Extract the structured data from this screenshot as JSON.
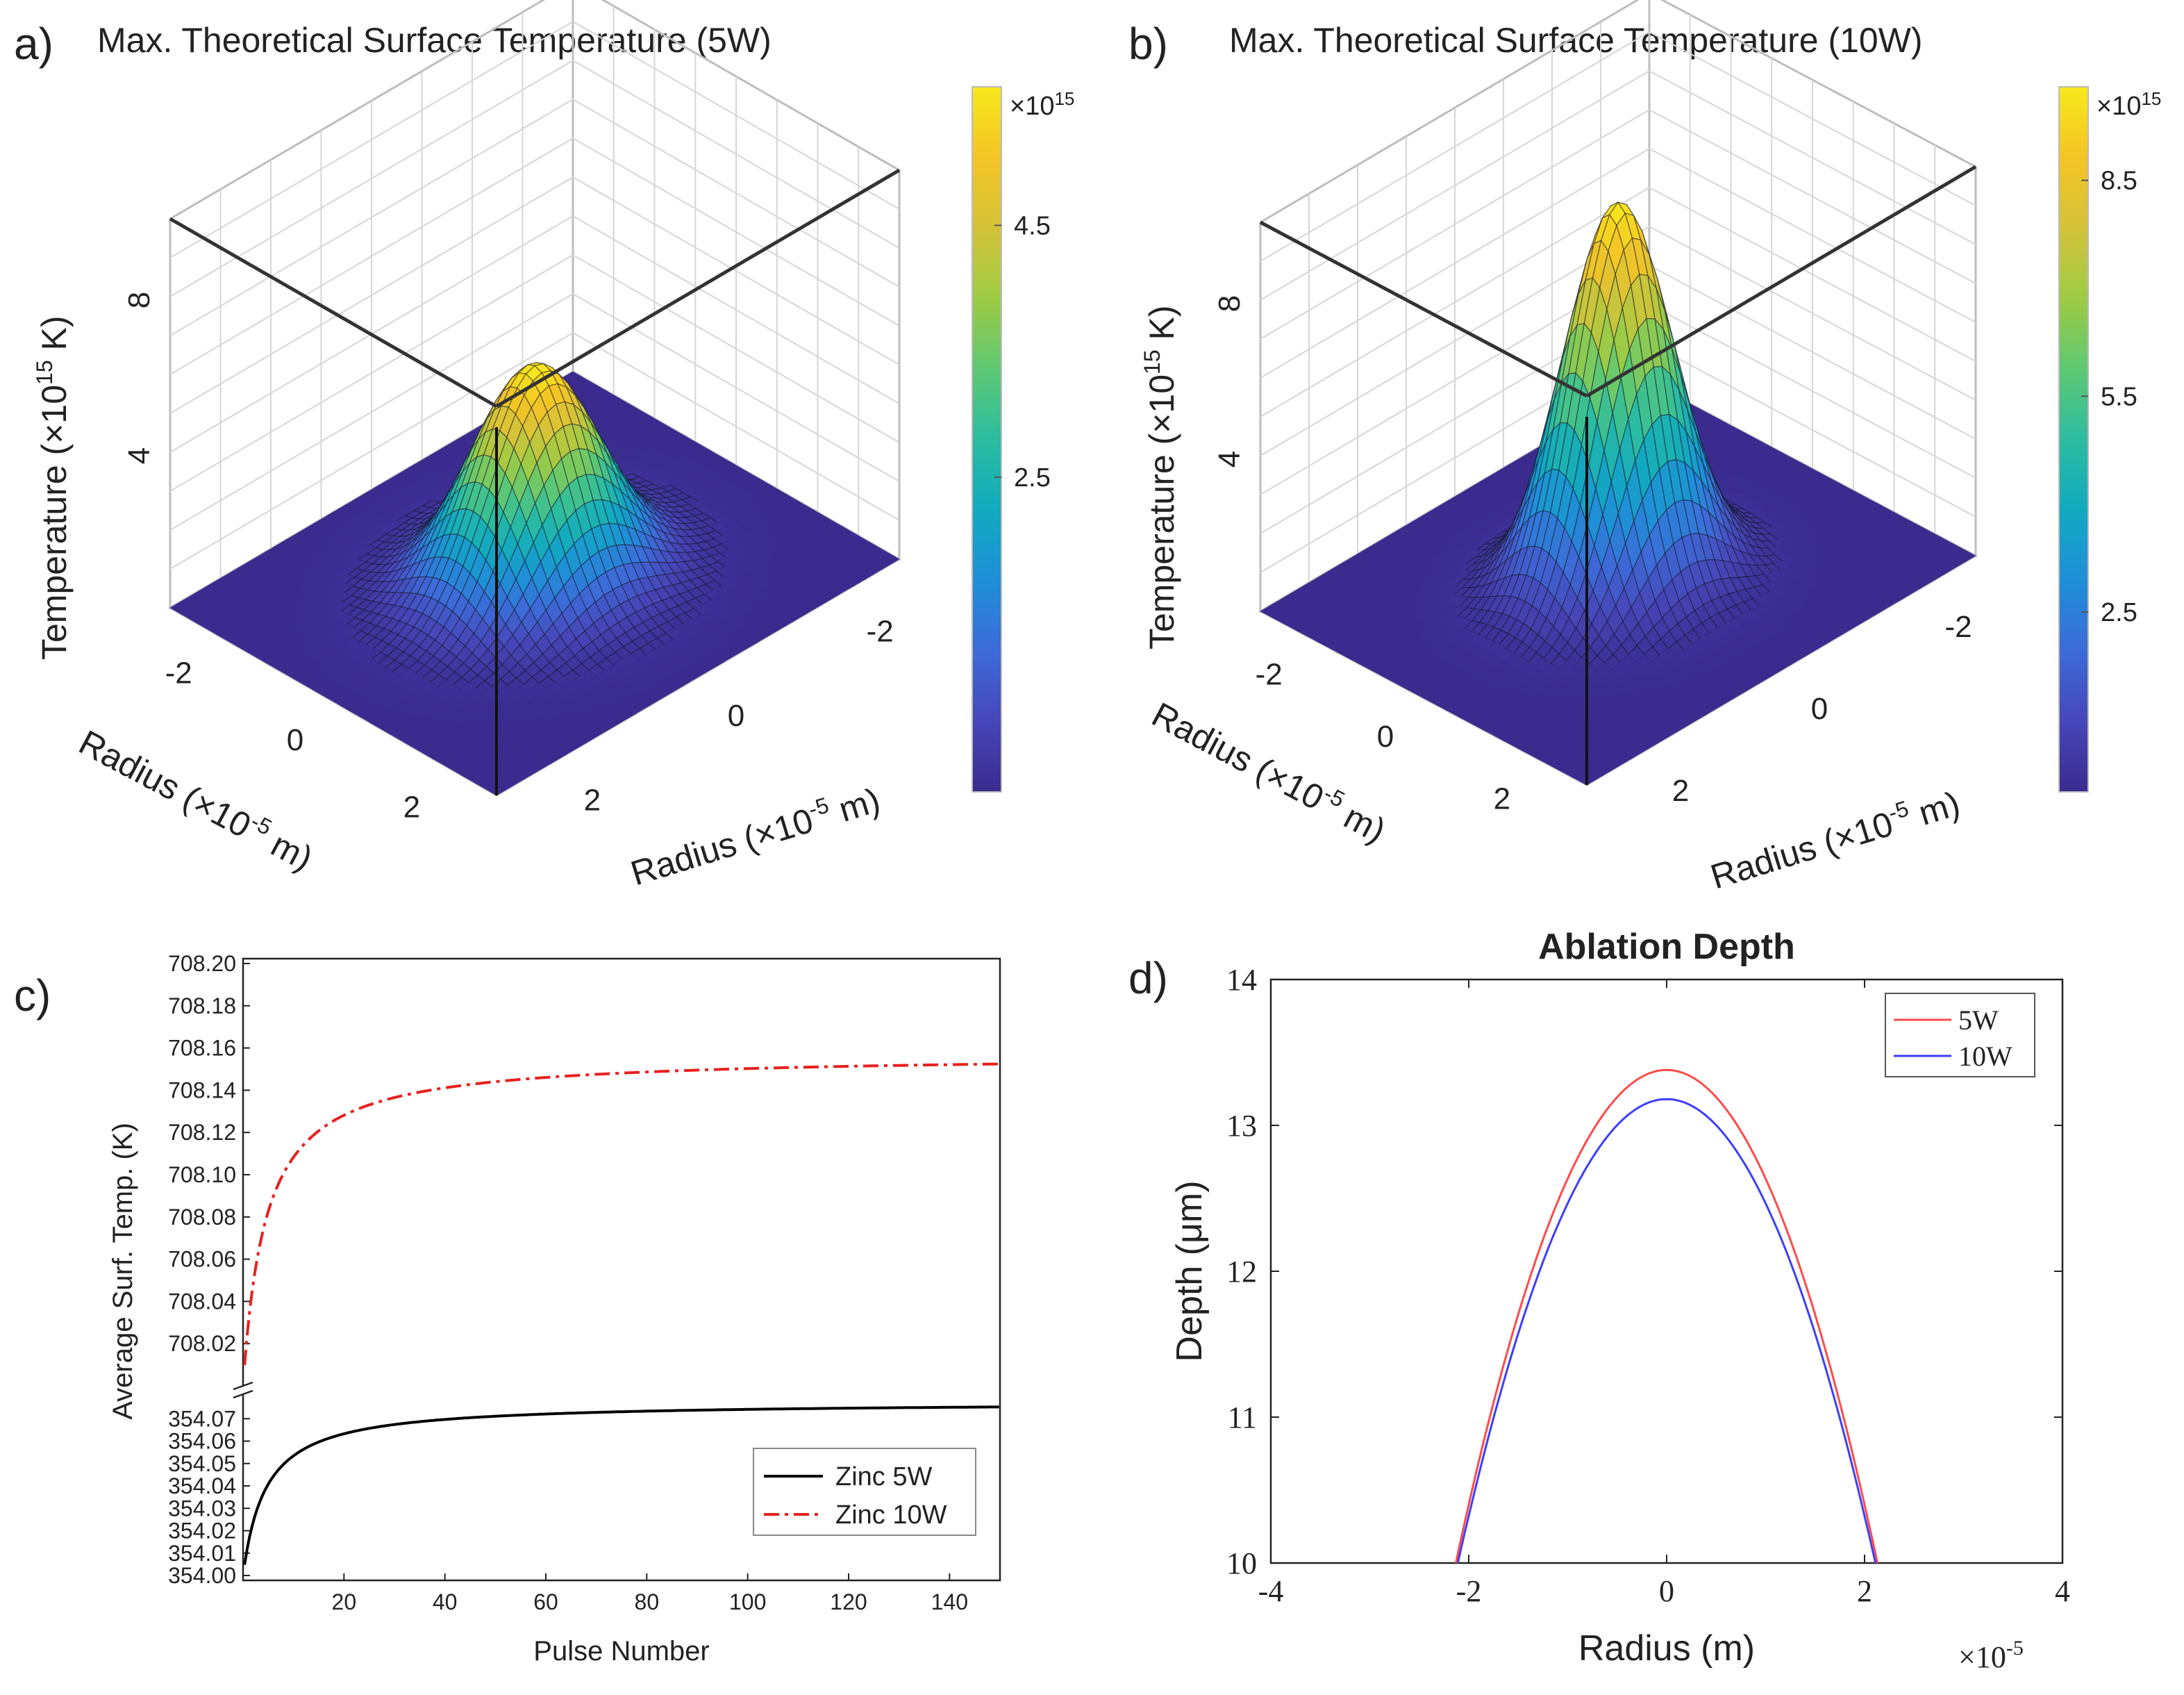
{
  "chart_data": [
    {
      "panel": "a)",
      "type": "surface3d",
      "title": "Max. Theoretical Surface Temperature (5W)",
      "zlabel_prefix": "Temperature (×10",
      "zlabel_sup": "15",
      "zlabel_suffix": " K)",
      "xlabel_prefix": "Radius (×10",
      "xlabel_sup": "-5",
      "xlabel_suffix": " m)",
      "ylabel_prefix": "Radius (×10",
      "ylabel_sup": "-5",
      "ylabel_suffix": " m)",
      "x_ticks": [
        "-2",
        "0",
        "2"
      ],
      "y_ticks": [
        "-2",
        "0",
        "2"
      ],
      "z_ticks": [
        "4",
        "8"
      ],
      "xlim": [
        -2.8,
        2.8
      ],
      "ylim": [
        -2.8,
        2.8
      ],
      "zlim": [
        0,
        10
      ],
      "peak": 5.6,
      "sigma": 0.72,
      "colorbar": {
        "multiplier": "×10",
        "multiplier_sup": "15",
        "ticks": [
          "2.5",
          "4.5"
        ],
        "range": [
          0,
          5.6
        ]
      },
      "colormap": [
        "#3b2b8f",
        "#4746b8",
        "#3d6bd8",
        "#1f8fd7",
        "#12aac0",
        "#2cbca0",
        "#5ec873",
        "#9ecb45",
        "#d4c33a",
        "#f4c425",
        "#f7e91b"
      ]
    },
    {
      "panel": "b)",
      "type": "surface3d",
      "title": "Max. Theoretical Surface Temperature (10W)",
      "zlabel_prefix": "Temperature (×10",
      "zlabel_sup": "15",
      "zlabel_suffix": " K)",
      "xlabel_prefix": "Radius (×10",
      "xlabel_sup": "-5",
      "xlabel_suffix": " m)",
      "ylabel_prefix": "Radius (×10",
      "ylabel_sup": "-5",
      "ylabel_suffix": " m)",
      "x_ticks": [
        "-2",
        "0",
        "2"
      ],
      "y_ticks": [
        "-2",
        "0",
        "2"
      ],
      "z_ticks": [
        "4",
        "8"
      ],
      "xlim": [
        -2.8,
        2.8
      ],
      "ylim": [
        -2.8,
        2.8
      ],
      "zlim": [
        0,
        10
      ],
      "peak": 9.8,
      "sigma": 0.62,
      "colorbar": {
        "multiplier": "×10",
        "multiplier_sup": "15",
        "ticks": [
          "2.5",
          "5.5",
          "8.5"
        ],
        "range": [
          0,
          9.8
        ]
      },
      "colormap": [
        "#3b2b8f",
        "#4746b8",
        "#3d6bd8",
        "#1f8fd7",
        "#12aac0",
        "#2cbca0",
        "#5ec873",
        "#9ecb45",
        "#d4c33a",
        "#f4c425",
        "#f7e91b"
      ]
    },
    {
      "panel": "c)",
      "type": "line",
      "xlabel": "Pulse Number",
      "ylabel": "Average Surf. Temp. (K)",
      "x_ticks": [
        20,
        40,
        60,
        80,
        100,
        120,
        140
      ],
      "xlim": [
        0,
        150
      ],
      "upper": {
        "ylim": [
          708.0,
          708.2
        ],
        "ticks": [
          "708.02",
          "708.04",
          "708.06",
          "708.08",
          "708.10",
          "708.12",
          "708.14",
          "708.16",
          "708.18",
          "708.20"
        ]
      },
      "lower": {
        "ylim": [
          354.0,
          354.08
        ],
        "ticks": [
          "354.00",
          "354.01",
          "354.02",
          "354.03",
          "354.04",
          "354.05",
          "354.06",
          "354.07"
        ]
      },
      "series": [
        {
          "name": "Zinc 5W",
          "color": "#000000",
          "dash": "solid",
          "base": 354.0,
          "amplitude": 0.0775,
          "scale": 4.5,
          "x": [
            1,
            2,
            3,
            5,
            10,
            20,
            40,
            60,
            80,
            100,
            120,
            150
          ]
        },
        {
          "name": "Zinc 10W",
          "color": "#e8201e",
          "dash": "dashdot",
          "base": 708.0,
          "amplitude": 0.157,
          "scale": 4.5,
          "x": [
            1,
            2,
            3,
            5,
            10,
            20,
            40,
            60,
            80,
            100,
            120,
            150
          ]
        }
      ]
    },
    {
      "panel": "d)",
      "type": "line",
      "title": "Ablation Depth",
      "xlabel": "Radius (m)",
      "ylabel": "Depth (μm)",
      "x_multiplier": "×10",
      "x_multiplier_sup": "-5",
      "xlim": [
        -4,
        4
      ],
      "ylim": [
        10,
        14
      ],
      "x_ticks": [
        "-4",
        "-2",
        "0",
        "2",
        "4"
      ],
      "y_ticks": [
        "10",
        "11",
        "12",
        "13",
        "14"
      ],
      "series": [
        {
          "name": "5W",
          "color": "#ff4a4a",
          "peak": 13.38,
          "halfwidth": 2.13
        },
        {
          "name": "10W",
          "color": "#3d3dff",
          "peak": 13.18,
          "halfwidth": 2.11
        }
      ]
    }
  ]
}
